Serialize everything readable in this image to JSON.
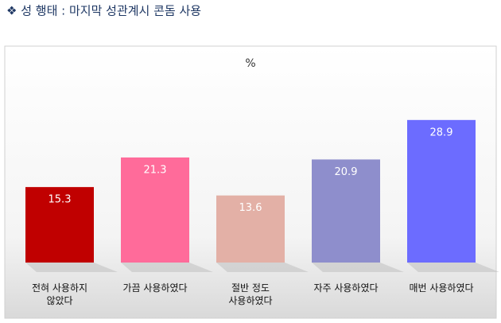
{
  "chart_data": {
    "type": "bar",
    "title": "❖ 성 행태 : 마지막 성관계시 콘돔 사용",
    "unit": "%",
    "categories": [
      "전혀 사용하지\n않았다",
      "가끔 사용하였다",
      "절반 정도\n사용하였다",
      "자주 사용하였다",
      "매번 사용하였다"
    ],
    "values": [
      15.3,
      21.3,
      13.6,
      20.9,
      28.9
    ],
    "colors": [
      "#c00000",
      "#ff6b9a",
      "#e3b0a6",
      "#8e8ecc",
      "#6c6cff"
    ]
  }
}
